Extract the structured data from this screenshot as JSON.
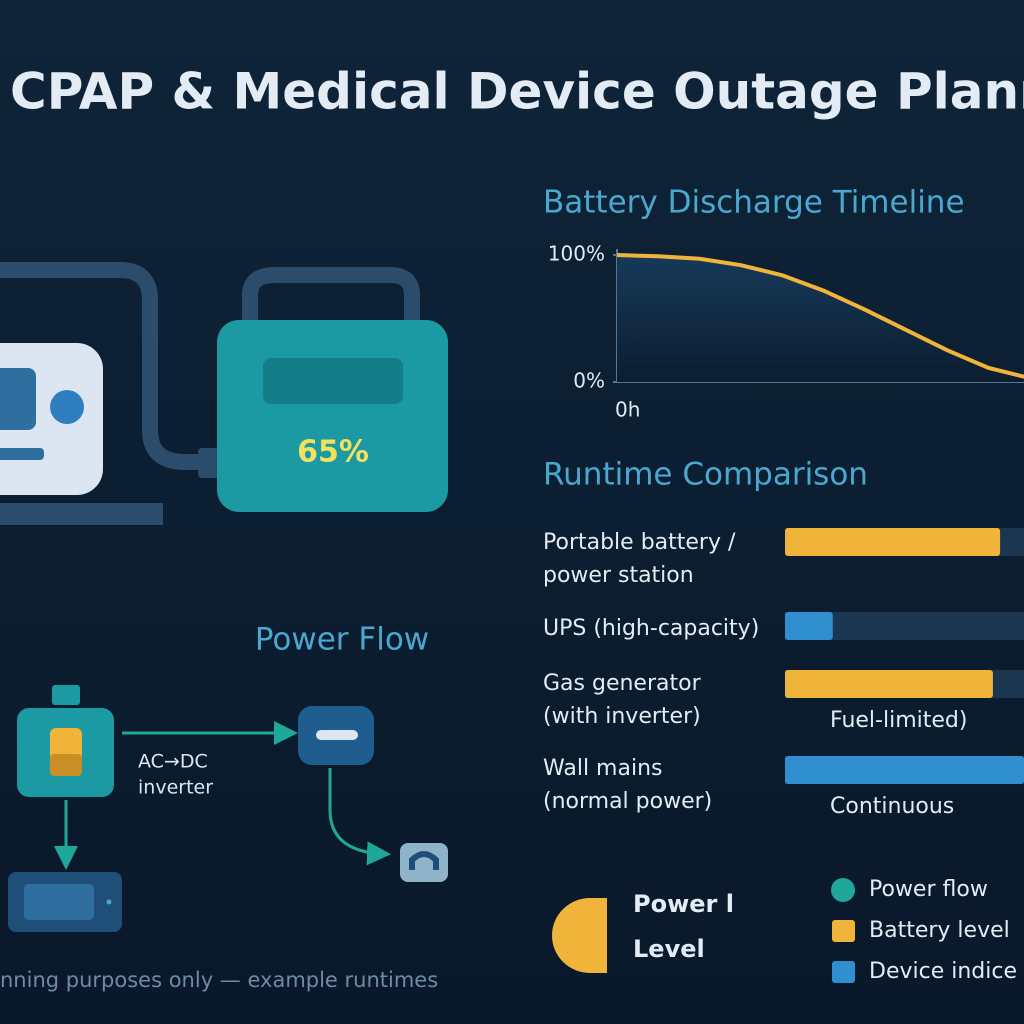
{
  "header": {
    "title": "CPAP & Medical Device Outage Planne"
  },
  "illustration": {
    "battery_level": "65%"
  },
  "power_flow": {
    "title": "Power Flow",
    "converter_label": [
      "AC→DC",
      "inverter"
    ]
  },
  "discharge_chart": {
    "title": "Battery Discharge Timeline",
    "ylim": [
      0,
      100
    ],
    "yticks": [
      {
        "value": 100,
        "label": "100%"
      },
      {
        "value": 0,
        "label": "0%"
      }
    ],
    "x_start_label": "0h",
    "color": "#f0b43a",
    "values": [
      100,
      99,
      97,
      92,
      84,
      72,
      57,
      41,
      25,
      11,
      3
    ]
  },
  "runtime": {
    "title": "Runtime Comparison",
    "xlim": [
      0,
      100
    ],
    "rows": [
      {
        "label": [
          "Portable battery /",
          "power station"
        ],
        "fill": 90,
        "color": "#f0b43a"
      },
      {
        "label": [
          "UPS (high-capacity)"
        ],
        "fill": 20,
        "color": "#2f8fcf"
      },
      {
        "label": [
          "Gas generator",
          "(with inverter)"
        ],
        "fill": 87,
        "color": "#f0b43a",
        "note": "Fuel-limited)"
      },
      {
        "label": [
          "Wall mains",
          "(normal power)"
        ],
        "fill": 100,
        "color": "#2f8fcf",
        "note": "Continuous"
      }
    ]
  },
  "gauge": {
    "label": [
      "Power l",
      "Level"
    ],
    "color": "#f0b43a"
  },
  "legend": {
    "items": [
      {
        "label": "Power flow",
        "color": "#1fa89a",
        "shape": "circle"
      },
      {
        "label": "Battery level",
        "color": "#f0b43a",
        "shape": "square"
      },
      {
        "label": "Device indice",
        "color": "#2f8fcf",
        "shape": "square"
      }
    ]
  },
  "footer": {
    "note": "nning purposes only — example runtimes"
  }
}
